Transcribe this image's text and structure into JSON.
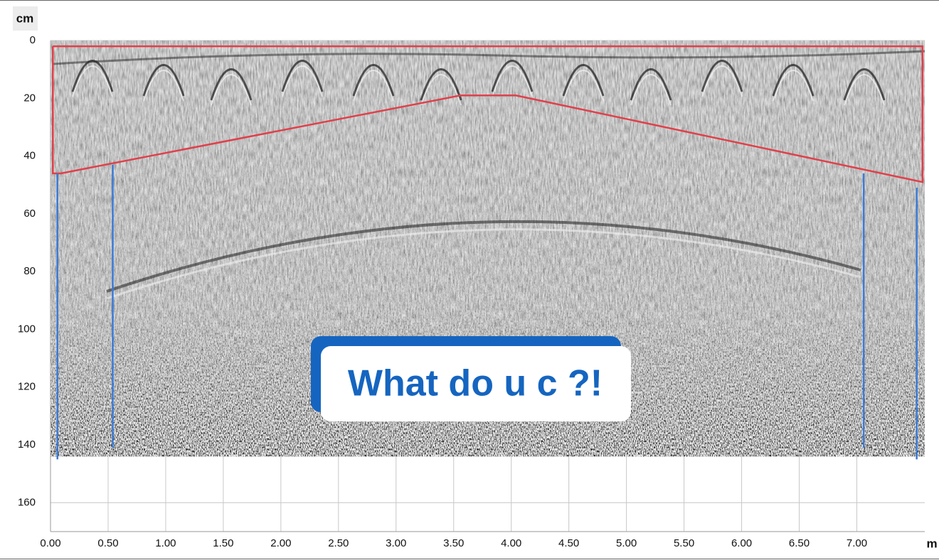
{
  "chart_data": {
    "type": "radargram",
    "x_label": "m",
    "y_label": "cm",
    "xlim": [
      0,
      7.59
    ],
    "ylim": [
      0,
      170
    ],
    "data_depth": 144,
    "xticks": [
      {
        "value": 0,
        "label": "0.00"
      },
      {
        "value": 0.5,
        "label": "0.50"
      },
      {
        "value": 1,
        "label": "1.00"
      },
      {
        "value": 1.5,
        "label": "1.50"
      },
      {
        "value": 2,
        "label": "2.00"
      },
      {
        "value": 2.5,
        "label": "2.50"
      },
      {
        "value": 3,
        "label": "3.00"
      },
      {
        "value": 3.5,
        "label": "3.50"
      },
      {
        "value": 4,
        "label": "4.00"
      },
      {
        "value": 4.5,
        "label": "4.50"
      },
      {
        "value": 5,
        "label": "5.00"
      },
      {
        "value": 5.5,
        "label": "5.50"
      },
      {
        "value": 6,
        "label": "6.00"
      },
      {
        "value": 6.5,
        "label": "6.50"
      },
      {
        "value": 7,
        "label": "7.00"
      }
    ],
    "yticks": [
      0,
      20,
      40,
      60,
      80,
      100,
      120,
      140,
      160
    ],
    "grid": true,
    "outline": {
      "color": "#e0404a",
      "x": [
        0.02,
        0.02,
        0.09,
        3.56,
        4.04,
        7.57,
        7.57,
        0.02
      ],
      "y": [
        2,
        46,
        46,
        19,
        19,
        49,
        2,
        2
      ]
    },
    "verticals": {
      "color": "#3a7bd5",
      "lines": [
        {
          "x": 0.06,
          "y": [
            46,
            145
          ]
        },
        {
          "x": 0.54,
          "y": [
            43,
            141
          ]
        },
        {
          "x": 7.06,
          "y": [
            46,
            141
          ]
        },
        {
          "x": 7.52,
          "y": [
            51,
            145
          ]
        }
      ]
    },
    "callout": "What do u c ?!"
  }
}
